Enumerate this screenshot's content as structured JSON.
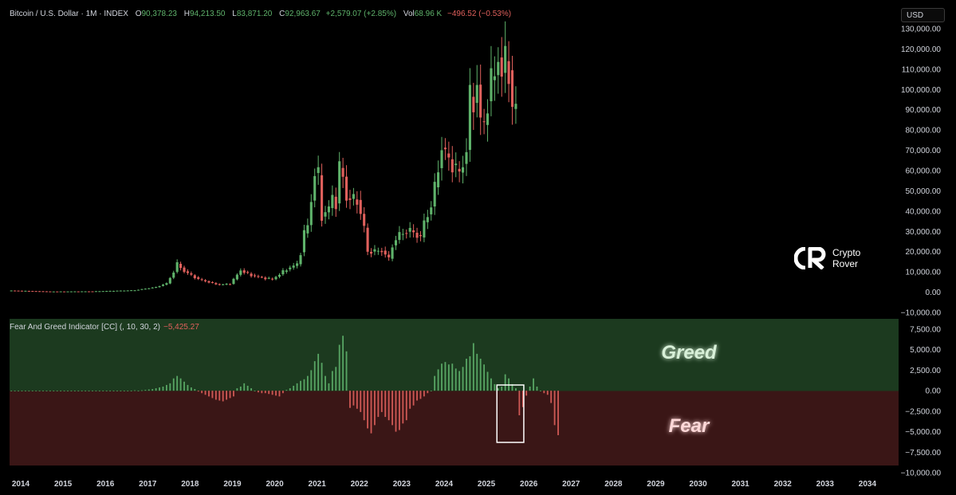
{
  "header": {
    "symbol": "Bitcoin / U.S. Dollar · 1M · INDEX",
    "ohlc": [
      {
        "k": "O",
        "v": "90,378.23"
      },
      {
        "k": "H",
        "v": "94,213.50"
      },
      {
        "k": "L",
        "v": "83,871.20"
      },
      {
        "k": "C",
        "v": "92,963.67"
      }
    ],
    "change": "+2,579.07 (+2.85%)",
    "vol_label": "Vol",
    "vol_value": "68.96 K",
    "vol_change": "−496.52 (−0.53%)"
  },
  "currency_button": "USD",
  "indicator": {
    "name": "Fear And Greed Indicator [CC] (, 10, 30, 2)",
    "value": "−5,425.27",
    "greed_label": "Greed",
    "fear_label": "Fear"
  },
  "logo": {
    "line1": "Crypto",
    "line2": "Rover"
  },
  "colors": {
    "up": "#5fb36b",
    "down": "#e0605c",
    "greed_zone": "#1c3a1f",
    "fear_zone": "#3a1616",
    "background": "#000000"
  },
  "chart_data": [
    {
      "type": "candlestick",
      "title": "",
      "x_range": [
        "2014-01",
        "2034-12"
      ],
      "ylim": [
        -10000,
        130000
      ],
      "y_ticks": [
        "130,000.00",
        "120,000.00",
        "110,000.00",
        "100,000.00",
        "90,000.00",
        "80,000.00",
        "70,000.00",
        "60,000.00",
        "50,000.00",
        "40,000.00",
        "30,000.00",
        "20,000.00",
        "10,000.00",
        "0.00",
        "−10,000.00"
      ],
      "x_ticks": [
        "2014",
        "2015",
        "2016",
        "2017",
        "2018",
        "2019",
        "2020",
        "2021",
        "2022",
        "2023",
        "2024",
        "2025",
        "2026",
        "2027",
        "2028",
        "2029",
        "2030",
        "2031",
        "2032",
        "2033",
        "2034"
      ],
      "grid": false,
      "anchors": [
        [
          "2014-01",
          800
        ],
        [
          "2014-12",
          350
        ],
        [
          "2015-12",
          420
        ],
        [
          "2016-12",
          950
        ],
        [
          "2017-06",
          2500
        ],
        [
          "2017-09",
          4300
        ],
        [
          "2017-11",
          10000
        ],
        [
          "2017-12",
          14000
        ],
        [
          "2018-02",
          10300
        ],
        [
          "2018-06",
          6400
        ],
        [
          "2018-11",
          4000
        ],
        [
          "2018-12",
          3700
        ],
        [
          "2019-03",
          4100
        ],
        [
          "2019-06",
          10800
        ],
        [
          "2019-09",
          8300
        ],
        [
          "2019-12",
          7200
        ],
        [
          "2020-03",
          6400
        ],
        [
          "2020-07",
          11300
        ],
        [
          "2020-10",
          13800
        ],
        [
          "2020-11",
          19700
        ],
        [
          "2020-12",
          29000
        ],
        [
          "2021-01",
          33100
        ],
        [
          "2021-02",
          45200
        ],
        [
          "2021-03",
          58800
        ],
        [
          "2021-04",
          57700
        ],
        [
          "2021-05",
          37300
        ],
        [
          "2021-07",
          41500
        ],
        [
          "2021-08",
          47100
        ],
        [
          "2021-09",
          43800
        ],
        [
          "2021-10",
          61300
        ],
        [
          "2021-11",
          57000
        ],
        [
          "2021-12",
          46300
        ],
        [
          "2022-03",
          45500
        ],
        [
          "2022-05",
          31800
        ],
        [
          "2022-06",
          19900
        ],
        [
          "2022-10",
          20500
        ],
        [
          "2022-12",
          16500
        ],
        [
          "2023-01",
          23100
        ],
        [
          "2023-03",
          28500
        ],
        [
          "2023-06",
          30500
        ],
        [
          "2023-09",
          27000
        ],
        [
          "2023-10",
          34500
        ],
        [
          "2023-12",
          42300
        ],
        [
          "2024-02",
          61200
        ],
        [
          "2024-03",
          71300
        ],
        [
          "2024-06",
          62700
        ],
        [
          "2024-08",
          59000
        ],
        [
          "2024-09",
          63300
        ],
        [
          "2024-10",
          70200
        ],
        [
          "2024-11",
          96400
        ],
        [
          "2024-12",
          93400
        ],
        [
          "2025-01",
          102400
        ],
        [
          "2025-02",
          84300
        ],
        [
          "2025-03",
          82500
        ],
        [
          "2025-04",
          94200
        ],
        [
          "2025-05",
          104600
        ],
        [
          "2025-06",
          107100
        ],
        [
          "2025-07",
          115800
        ],
        [
          "2025-08",
          108200
        ],
        [
          "2025-09",
          114000
        ],
        [
          "2025-10",
          109500
        ],
        [
          "2025-11",
          90400
        ],
        [
          "2025-12",
          92964
        ]
      ]
    },
    {
      "type": "bar",
      "title": "Fear And Greed Indicator [CC] (, 10, 30, 2)",
      "ylim": [
        -10000,
        8750
      ],
      "y_ticks": [
        "7,500.00",
        "5,000.00",
        "2,500.00",
        "0.00",
        "−2,500.00",
        "−5,000.00",
        "−7,500.00",
        "−10,000.00"
      ],
      "series": [
        {
          "values_monthly_from": "2014-01",
          "values": [
            0,
            0,
            0,
            0,
            0,
            0,
            0,
            0,
            0,
            0,
            0,
            0,
            0,
            0,
            0,
            0,
            0,
            0,
            0,
            0,
            0,
            0,
            0,
            0,
            0,
            0,
            0,
            0,
            0,
            0,
            0,
            0,
            0,
            0,
            0,
            50,
            0,
            50,
            100,
            150,
            200,
            300,
            400,
            500,
            700,
            900,
            1500,
            1800,
            1500,
            1100,
            700,
            400,
            200,
            -100,
            -300,
            -500,
            -700,
            -900,
            -1100,
            -1200,
            -1300,
            -1100,
            -900,
            -700,
            300,
            500,
            900,
            600,
            300,
            0,
            -200,
            -300,
            -300,
            -400,
            -500,
            -600,
            -700,
            -300,
            100,
            300,
            600,
            900,
            1200,
            1400,
            1800,
            2500,
            3600,
            4500,
            3400,
            1800,
            900,
            2400,
            2900,
            5600,
            6700,
            4800,
            -2100,
            -1800,
            -2200,
            -2600,
            -3600,
            -4600,
            -5200,
            -4200,
            -3200,
            -2600,
            -3200,
            -3600,
            -4200,
            -5000,
            -4800,
            -4000,
            -3600,
            -2200,
            -1800,
            -1200,
            -1000,
            -700,
            -300,
            0,
            1800,
            2600,
            3300,
            3500,
            3200,
            3300,
            2700,
            2400,
            2900,
            3900,
            4200,
            5800,
            4500,
            3900,
            3200,
            2300,
            1500,
            800,
            300,
            500,
            2000,
            1500,
            800,
            300,
            -3000,
            -2000,
            -600,
            500,
            1500,
            500,
            0,
            -300,
            -500,
            -1500,
            -4200,
            -5425
          ]
        }
      ],
      "highlight_box": [
        "2025-08",
        "2025-12"
      ]
    }
  ]
}
